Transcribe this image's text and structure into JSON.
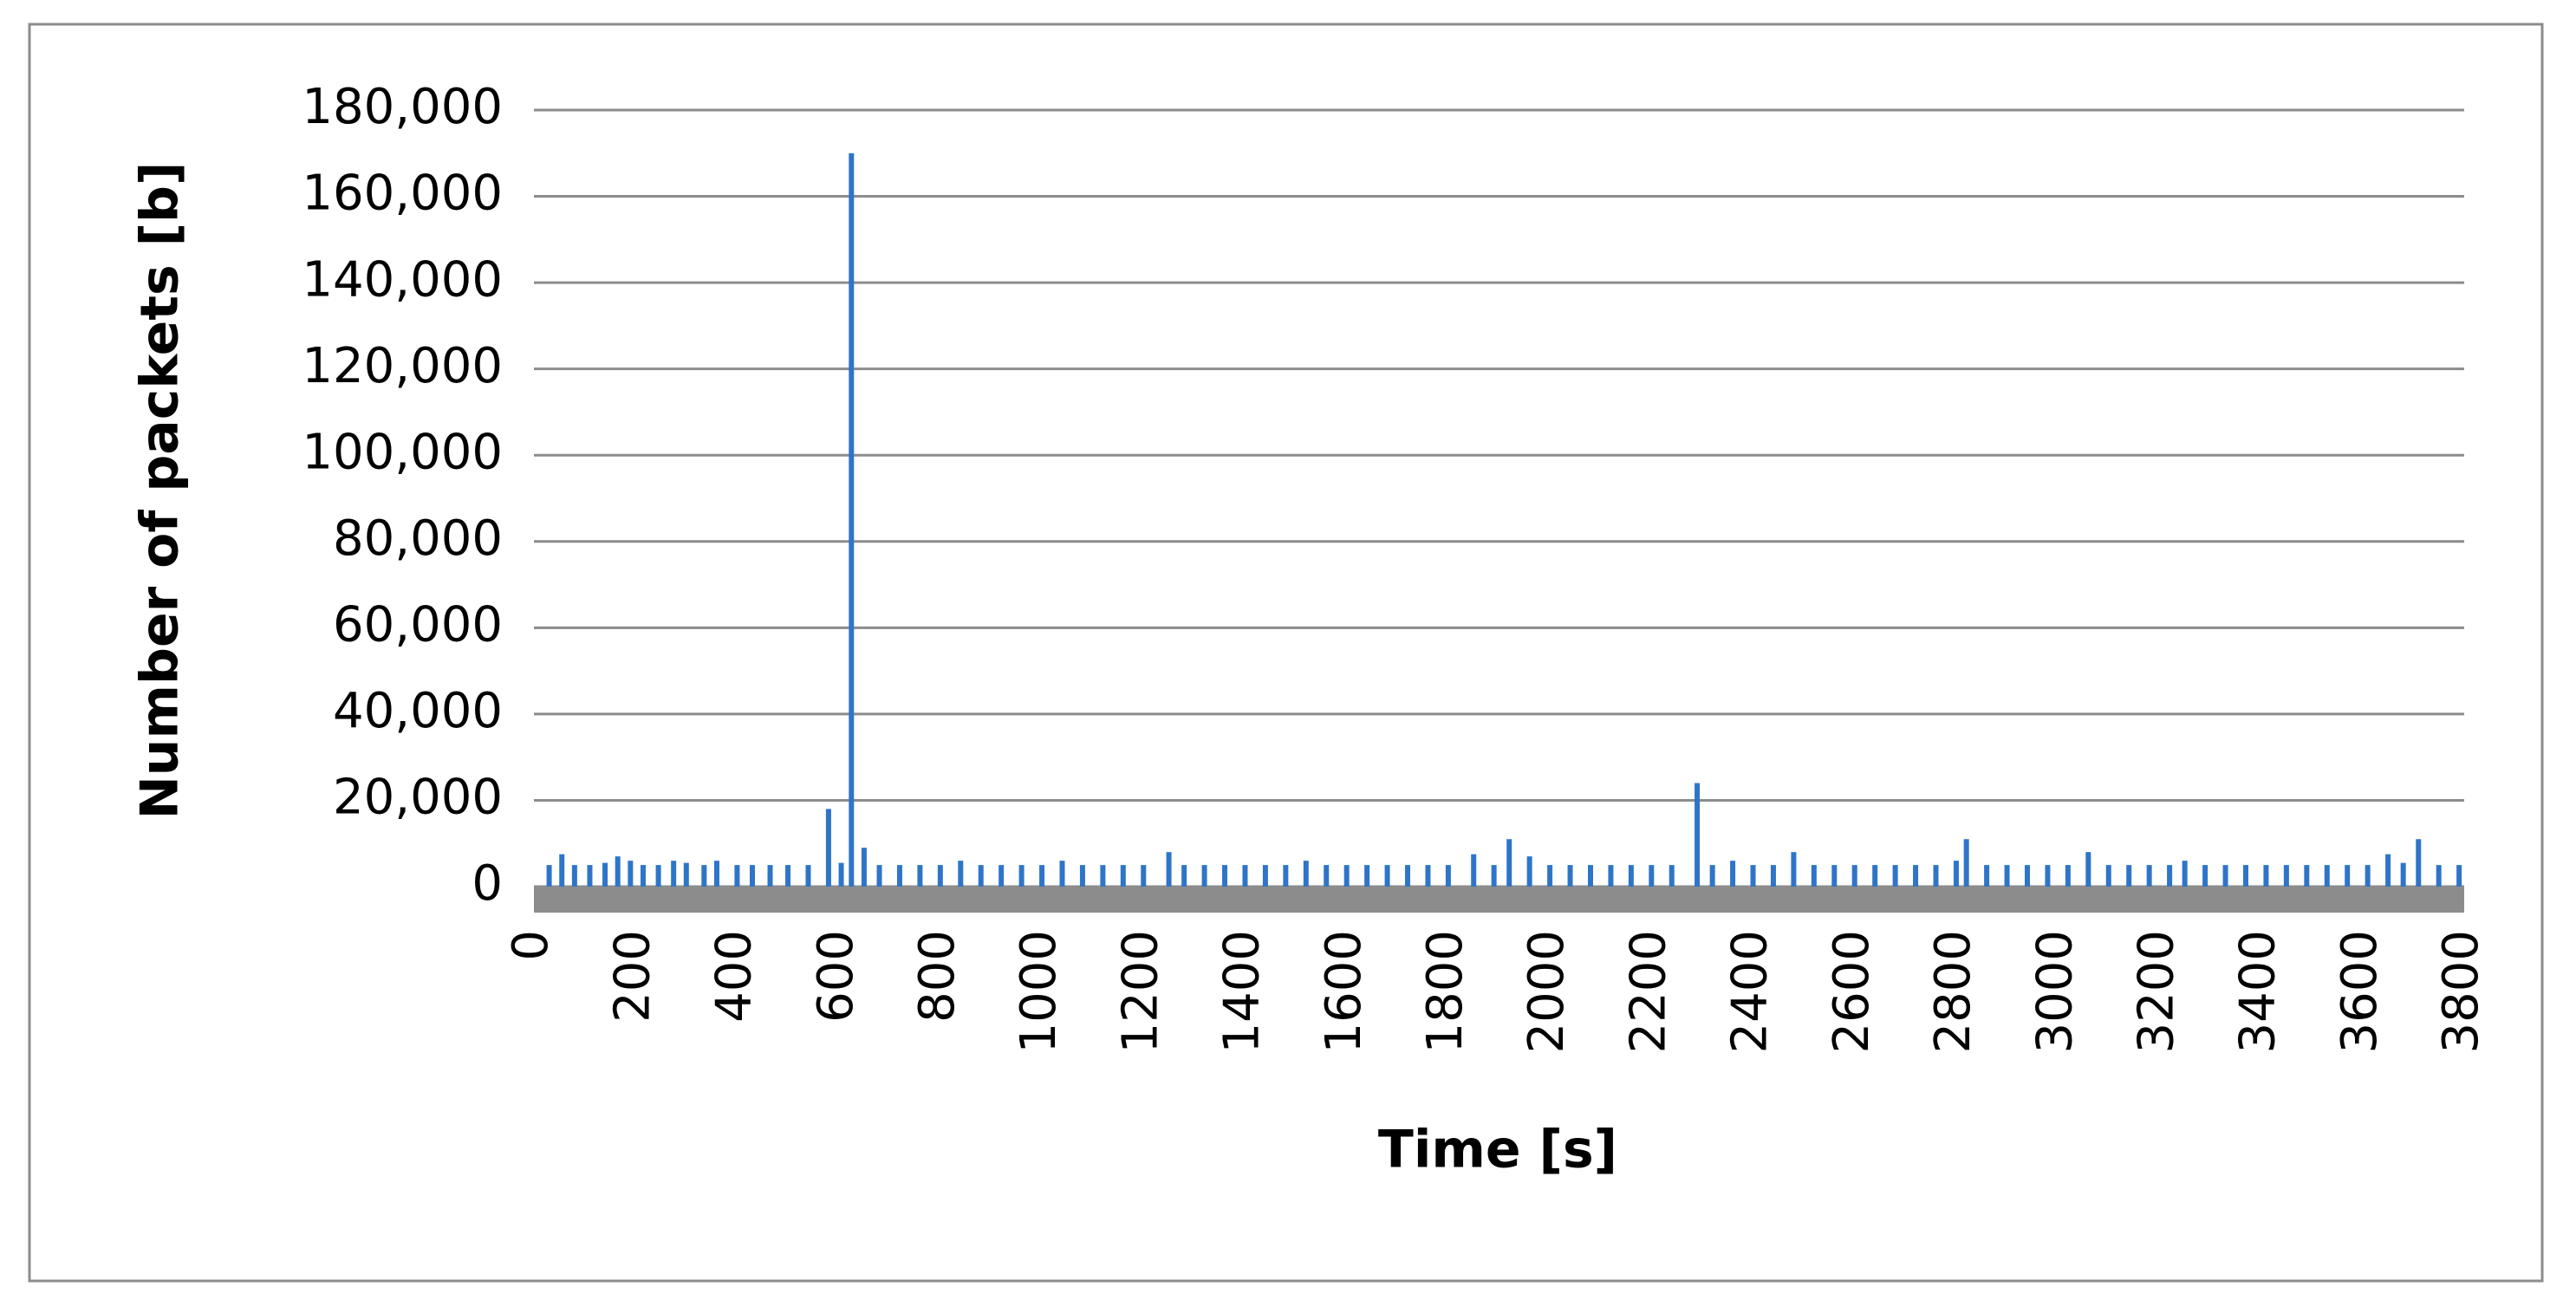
{
  "chart_data": {
    "type": "bar",
    "xlabel": "Time [s]",
    "ylabel": "Number of packets [b]",
    "x": [
      30,
      55,
      80,
      110,
      140,
      165,
      190,
      215,
      245,
      275,
      300,
      335,
      360,
      400,
      430,
      465,
      500,
      540,
      580,
      605,
      625,
      650,
      680,
      720,
      760,
      800,
      840,
      880,
      920,
      960,
      1000,
      1040,
      1080,
      1120,
      1160,
      1200,
      1250,
      1280,
      1320,
      1360,
      1400,
      1440,
      1480,
      1520,
      1560,
      1600,
      1640,
      1680,
      1720,
      1760,
      1800,
      1850,
      1890,
      1920,
      1960,
      2000,
      2040,
      2080,
      2120,
      2160,
      2200,
      2240,
      2290,
      2320,
      2360,
      2400,
      2440,
      2480,
      2520,
      2560,
      2600,
      2640,
      2680,
      2720,
      2760,
      2800,
      2820,
      2860,
      2900,
      2940,
      2980,
      3020,
      3060,
      3100,
      3140,
      3180,
      3220,
      3250,
      3290,
      3330,
      3370,
      3410,
      3450,
      3490,
      3530,
      3570,
      3610,
      3650,
      3680,
      3710,
      3750,
      3790
    ],
    "values": [
      5000,
      7500,
      5000,
      5000,
      5500,
      7000,
      6000,
      5000,
      5000,
      6000,
      5500,
      5000,
      6000,
      5000,
      5000,
      5000,
      5000,
      5000,
      18000,
      5500,
      170000,
      9000,
      5000,
      5000,
      5000,
      5000,
      6000,
      5000,
      5000,
      5000,
      5000,
      6000,
      5000,
      5000,
      5000,
      5000,
      8000,
      5000,
      5000,
      5000,
      5000,
      5000,
      5000,
      6000,
      5000,
      5000,
      5000,
      5000,
      5000,
      5000,
      5000,
      7500,
      5000,
      11000,
      7000,
      5000,
      5000,
      5000,
      5000,
      5000,
      5000,
      5000,
      24000,
      5000,
      6000,
      5000,
      5000,
      8000,
      5000,
      5000,
      5000,
      5000,
      5000,
      5000,
      5000,
      6000,
      11000,
      5000,
      5000,
      5000,
      5000,
      5000,
      8000,
      5000,
      5000,
      5000,
      5000,
      6000,
      5000,
      5000,
      5000,
      5000,
      5000,
      5000,
      5000,
      5000,
      5000,
      7500,
      5500,
      11000,
      5000,
      5000
    ],
    "color": "#2e75c8",
    "xlim": [
      0,
      3800
    ],
    "xticks": [
      0,
      200,
      400,
      600,
      800,
      1000,
      1200,
      1400,
      1600,
      1800,
      2000,
      2200,
      2400,
      2600,
      2800,
      3000,
      3200,
      3400,
      3600,
      3800
    ],
    "ylim": [
      0,
      180000
    ],
    "yticks": [
      0,
      {
        "value": 20000,
        "label": "20,000"
      },
      {
        "value": 40000,
        "label": "40,000"
      },
      {
        "value": 60000,
        "label": "60,000"
      },
      {
        "value": 80000,
        "label": "80,000"
      },
      {
        "value": 100000,
        "label": "100,000"
      },
      {
        "value": 120000,
        "label": "120,000"
      },
      {
        "value": 140000,
        "label": "140,000"
      },
      {
        "value": 160000,
        "label": "160,000"
      },
      {
        "value": 180000,
        "label": "180,000"
      }
    ],
    "grid": true
  }
}
